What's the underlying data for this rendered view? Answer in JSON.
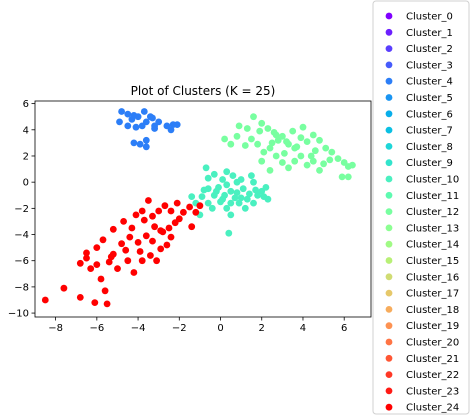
{
  "chart_data": {
    "type": "scatter",
    "title": "Plot of Clusters (K = 25)",
    "xlabel": "",
    "ylabel": "",
    "xlim": [
      -9.0,
      7.3
    ],
    "ylim": [
      -10.3,
      6.2
    ],
    "xticks": [
      -8,
      -6,
      -4,
      -2,
      0,
      2,
      4,
      6
    ],
    "yticks": [
      -10,
      -8,
      -6,
      -4,
      -2,
      0,
      2,
      4,
      6
    ],
    "xtick_labels": [
      "−8",
      "−6",
      "−4",
      "−2",
      "0",
      "2",
      "4",
      "6"
    ],
    "ytick_labels": [
      "−10",
      "−8",
      "−6",
      "−4",
      "−2",
      "0",
      "2",
      "4",
      "6"
    ],
    "grid": false,
    "legend_position": "right",
    "legend": [
      {
        "name": "Cluster_0",
        "color": "#8000ff"
      },
      {
        "name": "Cluster_1",
        "color": "#6c1ffe"
      },
      {
        "name": "Cluster_2",
        "color": "#5a3efe"
      },
      {
        "name": "Cluster_3",
        "color": "#465bfb"
      },
      {
        "name": "Cluster_4",
        "color": "#2c7ef7"
      },
      {
        "name": "Cluster_5",
        "color": "#1a95f2"
      },
      {
        "name": "Cluster_6",
        "color": "#08aeea"
      },
      {
        "name": "Cluster_7",
        "color": "#0ac0e3"
      },
      {
        "name": "Cluster_8",
        "color": "#1ed6d8"
      },
      {
        "name": "Cluster_9",
        "color": "#32e4cc"
      },
      {
        "name": "Cluster_10",
        "color": "#4af0c0"
      },
      {
        "name": "Cluster_11",
        "color": "#5efab0"
      },
      {
        "name": "Cluster_12",
        "color": "#78ffa0"
      },
      {
        "name": "Cluster_13",
        "color": "#8cff92"
      },
      {
        "name": "Cluster_14",
        "color": "#a0fa85"
      },
      {
        "name": "Cluster_15",
        "color": "#b8f076"
      },
      {
        "name": "Cluster_16",
        "color": "#d0dc73"
      },
      {
        "name": "Cluster_17",
        "color": "#e6c86a"
      },
      {
        "name": "Cluster_18",
        "color": "#f7ac5c"
      },
      {
        "name": "Cluster_19",
        "color": "#fd9252"
      },
      {
        "name": "Cluster_20",
        "color": "#ff7444"
      },
      {
        "name": "Cluster_21",
        "color": "#ff5634"
      },
      {
        "name": "Cluster_22",
        "color": "#ff3826"
      },
      {
        "name": "Cluster_23",
        "color": "#ff1a14"
      },
      {
        "name": "Cluster_24",
        "color": "#ff0000"
      }
    ],
    "series": [
      {
        "cluster": "Cluster_4",
        "color": "#2c7ef7",
        "points": [
          [
            -4.8,
            5.4
          ],
          [
            -4.5,
            5.2
          ],
          [
            -4.2,
            5.1
          ],
          [
            -4.0,
            5.0
          ],
          [
            -3.7,
            5.4
          ],
          [
            -3.3,
            4.9
          ],
          [
            -3.0,
            4.6
          ],
          [
            -4.9,
            4.6
          ],
          [
            -4.5,
            4.3
          ],
          [
            -4.1,
            4.2
          ],
          [
            -3.6,
            4.6
          ],
          [
            -3.2,
            4.3
          ],
          [
            -3.2,
            4.1
          ],
          [
            -2.6,
            4.3
          ],
          [
            -2.3,
            4.4
          ],
          [
            -2.1,
            4.4
          ],
          [
            -2.4,
            4.0
          ],
          [
            -3.6,
            3.2
          ],
          [
            -3.9,
            2.9
          ],
          [
            -4.2,
            3.0
          ],
          [
            -3.6,
            2.7
          ],
          [
            -3.4,
            5.0
          ],
          [
            -3.8,
            4.3
          ],
          [
            -4.3,
            4.8
          ]
        ]
      },
      {
        "cluster": "Cluster_10",
        "color": "#4af0c0",
        "points": [
          [
            -0.7,
            1.1
          ],
          [
            -0.6,
            0.3
          ],
          [
            -0.3,
            0.6
          ],
          [
            0.1,
            0.2
          ],
          [
            0.3,
            0.8
          ],
          [
            0.6,
            0.5
          ],
          [
            1.0,
            0.2
          ],
          [
            1.5,
            0.5
          ],
          [
            1.6,
            0.0
          ],
          [
            -0.8,
            -0.6
          ],
          [
            -0.6,
            -0.5
          ],
          [
            -0.3,
            -1.0
          ],
          [
            -0.2,
            -0.7
          ],
          [
            0.1,
            -1.3
          ],
          [
            0.2,
            -1.0
          ],
          [
            0.5,
            -0.7
          ],
          [
            0.5,
            -1.6
          ],
          [
            0.8,
            -0.8
          ],
          [
            0.9,
            -1.6
          ],
          [
            1.0,
            -1.2
          ],
          [
            1.3,
            -1.3
          ],
          [
            1.4,
            -0.9
          ],
          [
            1.7,
            -0.6
          ],
          [
            2.0,
            -0.7
          ],
          [
            2.2,
            -0.4
          ],
          [
            2.1,
            -1.1
          ],
          [
            1.8,
            -1.0
          ],
          [
            -1.4,
            -1.1
          ],
          [
            -1.2,
            -1.6
          ],
          [
            -0.9,
            -1.1
          ],
          [
            -0.6,
            -1.6
          ],
          [
            -0.4,
            -2.0
          ],
          [
            0.3,
            -2.0
          ],
          [
            0.5,
            -2.5
          ],
          [
            1.2,
            -2.0
          ],
          [
            1.6,
            -1.6
          ],
          [
            2.3,
            -1.3
          ],
          [
            0.4,
            -3.9
          ],
          [
            -1.0,
            -2.5
          ],
          [
            0.0,
            -1.5
          ],
          [
            0.8,
            0.0
          ],
          [
            1.1,
            -0.5
          ],
          [
            0.3,
            -0.2
          ],
          [
            -0.1,
            -0.4
          ],
          [
            0.7,
            -1.2
          ]
        ]
      },
      {
        "cluster": "Cluster_12",
        "color": "#78ffa0",
        "points": [
          [
            0.9,
            4.3
          ],
          [
            1.3,
            4.1
          ],
          [
            1.6,
            5.0
          ],
          [
            2.0,
            4.5
          ],
          [
            2.3,
            4.1
          ],
          [
            2.6,
            3.8
          ],
          [
            2.8,
            3.2
          ],
          [
            3.0,
            3.5
          ],
          [
            3.3,
            2.9
          ],
          [
            3.6,
            2.6
          ],
          [
            3.9,
            3.4
          ],
          [
            4.2,
            3.1
          ],
          [
            4.5,
            3.6
          ],
          [
            4.8,
            3.2
          ],
          [
            5.1,
            2.6
          ],
          [
            5.4,
            2.3
          ],
          [
            5.7,
            1.8
          ],
          [
            6.0,
            1.5
          ],
          [
            6.2,
            1.2
          ],
          [
            6.4,
            1.3
          ],
          [
            5.9,
            0.4
          ],
          [
            6.2,
            0.4
          ],
          [
            5.0,
            1.4
          ],
          [
            4.8,
            0.9
          ],
          [
            4.5,
            1.6
          ],
          [
            4.2,
            1.3
          ],
          [
            3.9,
            2.0
          ],
          [
            3.6,
            1.6
          ],
          [
            3.3,
            1.1
          ],
          [
            3.0,
            1.5
          ],
          [
            2.7,
            2.0
          ],
          [
            2.4,
            2.6
          ],
          [
            2.1,
            2.3
          ],
          [
            1.8,
            2.9
          ],
          [
            1.5,
            3.3
          ],
          [
            1.2,
            2.8
          ],
          [
            0.8,
            3.5
          ],
          [
            0.5,
            2.9
          ],
          [
            0.2,
            3.3
          ],
          [
            2.0,
            1.6
          ],
          [
            2.4,
            0.9
          ],
          [
            3.1,
            2.2
          ],
          [
            3.5,
            3.9
          ],
          [
            4.0,
            4.2
          ],
          [
            4.6,
            2.4
          ],
          [
            5.3,
            1.7
          ],
          [
            2.7,
            3.6
          ],
          [
            1.9,
            3.9
          ],
          [
            3.7,
            2.7
          ],
          [
            4.4,
            2.0
          ],
          [
            3.2,
            3.1
          ],
          [
            2.5,
            3.0
          ]
        ]
      },
      {
        "cluster": "Cluster_24",
        "color": "#ff0000",
        "points": [
          [
            -8.5,
            -9.0
          ],
          [
            -7.6,
            -8.1
          ],
          [
            -6.8,
            -8.8
          ],
          [
            -6.1,
            -9.2
          ],
          [
            -5.5,
            -9.3
          ],
          [
            -5.6,
            -8.3
          ],
          [
            -6.8,
            -6.2
          ],
          [
            -6.5,
            -5.8
          ],
          [
            -6.3,
            -6.6
          ],
          [
            -6.0,
            -6.3
          ],
          [
            -5.8,
            -7.4
          ],
          [
            -5.4,
            -6.1
          ],
          [
            -5.2,
            -5.5
          ],
          [
            -5.0,
            -6.6
          ],
          [
            -4.8,
            -4.7
          ],
          [
            -4.5,
            -6.0
          ],
          [
            -4.2,
            -6.9
          ],
          [
            -3.8,
            -6.0
          ],
          [
            -3.4,
            -5.6
          ],
          [
            -3.1,
            -6.0
          ],
          [
            -2.9,
            -5.1
          ],
          [
            -2.6,
            -4.8
          ],
          [
            -2.4,
            -4.2
          ],
          [
            -2.8,
            -3.8
          ],
          [
            -3.2,
            -3.4
          ],
          [
            -3.6,
            -4.1
          ],
          [
            -4.0,
            -4.6
          ],
          [
            -4.3,
            -3.5
          ],
          [
            -3.7,
            -2.9
          ],
          [
            -3.3,
            -2.6
          ],
          [
            -3.0,
            -2.2
          ],
          [
            -2.7,
            -1.8
          ],
          [
            -2.4,
            -2.2
          ],
          [
            -2.1,
            -1.6
          ],
          [
            -1.8,
            -2.3
          ],
          [
            -1.5,
            -1.9
          ],
          [
            -1.2,
            -2.3
          ],
          [
            -1.0,
            -1.8
          ],
          [
            -3.5,
            -1.4
          ],
          [
            -4.1,
            -2.5
          ],
          [
            -4.7,
            -3.0
          ],
          [
            -5.2,
            -3.6
          ],
          [
            -5.7,
            -4.4
          ],
          [
            -6.0,
            -5.0
          ],
          [
            -6.5,
            -5.4
          ],
          [
            -4.6,
            -5.2
          ],
          [
            -3.9,
            -5.3
          ],
          [
            -3.3,
            -4.5
          ],
          [
            -2.2,
            -3.1
          ],
          [
            -2.0,
            -2.8
          ],
          [
            -1.4,
            -3.4
          ],
          [
            -2.5,
            -3.5
          ],
          [
            -3.8,
            -2.2
          ],
          [
            -2.9,
            -3.7
          ],
          [
            -4.4,
            -4.2
          ],
          [
            -5.3,
            -5.7
          ]
        ]
      }
    ]
  }
}
